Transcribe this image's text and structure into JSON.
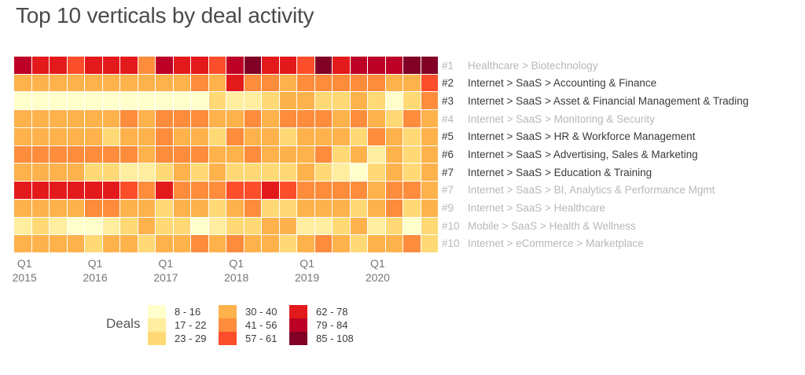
{
  "title": "Top 10 verticals by deal activity",
  "chart_data": {
    "type": "heatmap",
    "title": "Top 10 verticals by deal activity",
    "n_columns": 24,
    "column_meaning": "quarters from Q1 2015 through Q4 2020, one column per quarter",
    "x_axis": {
      "ticks": [
        {
          "quarter": "Q1",
          "year": "2015",
          "column": 1
        },
        {
          "quarter": "Q1",
          "year": "2016",
          "column": 5
        },
        {
          "quarter": "Q1",
          "year": "2017",
          "column": 9
        },
        {
          "quarter": "Q1",
          "year": "2018",
          "column": 13
        },
        {
          "quarter": "Q1",
          "year": "2019",
          "column": 17
        },
        {
          "quarter": "Q1",
          "year": "2020",
          "column": 21
        }
      ]
    },
    "legend": {
      "label": "Deals",
      "bins": [
        {
          "range": "8 - 16",
          "color": "#FFFFCC"
        },
        {
          "range": "17 - 22",
          "color": "#FFEDA0"
        },
        {
          "range": "23 - 29",
          "color": "#FED976"
        },
        {
          "range": "30 - 40",
          "color": "#FEB24C"
        },
        {
          "range": "41 - 56",
          "color": "#FD8D3C"
        },
        {
          "range": "57 - 61",
          "color": "#FC4E2A"
        },
        {
          "range": "62 - 78",
          "color": "#E31A1C"
        },
        {
          "range": "79 - 84",
          "color": "#BD0026"
        },
        {
          "range": "85 - 108",
          "color": "#800026"
        }
      ]
    },
    "cell_values_are": "index into legend.bins (0 = lightest 8-16 deals, 8 = darkest 85-108 deals)",
    "rows": [
      {
        "rank": "#1",
        "label": "Healthcare > Biotechnology",
        "muted": true,
        "bins": [
          7,
          6,
          6,
          5,
          6,
          6,
          6,
          4,
          7,
          6,
          6,
          5,
          7,
          8,
          6,
          6,
          5,
          8,
          6,
          7,
          7,
          7,
          8,
          8
        ]
      },
      {
        "rank": "#2",
        "label": "Internet > SaaS > Accounting & Finance",
        "muted": false,
        "bins": [
          3,
          3,
          3,
          3,
          3,
          3,
          3,
          3,
          3,
          3,
          4,
          3,
          6,
          4,
          4,
          3,
          4,
          4,
          4,
          4,
          4,
          3,
          3,
          5
        ]
      },
      {
        "rank": "#3",
        "label": "Internet > SaaS > Asset & Financial Management & Trading",
        "muted": false,
        "bins": [
          0,
          0,
          0,
          0,
          0,
          0,
          0,
          0,
          0,
          0,
          0,
          2,
          1,
          1,
          2,
          3,
          3,
          2,
          2,
          3,
          2,
          0,
          2,
          4
        ]
      },
      {
        "rank": "#4",
        "label": "Internet > SaaS > Monitoring & Security",
        "muted": true,
        "bins": [
          3,
          3,
          3,
          3,
          3,
          3,
          4,
          3,
          4,
          4,
          4,
          3,
          3,
          4,
          3,
          4,
          4,
          4,
          3,
          4,
          3,
          2,
          4,
          3
        ]
      },
      {
        "rank": "#5",
        "label": "Internet > SaaS > HR & Workforce Management",
        "muted": false,
        "bins": [
          3,
          3,
          3,
          3,
          3,
          2,
          3,
          3,
          4,
          3,
          3,
          2,
          4,
          3,
          3,
          2,
          3,
          3,
          3,
          2,
          4,
          3,
          2,
          3
        ]
      },
      {
        "rank": "#6",
        "label": "Internet > SaaS > Advertising, Sales & Marketing",
        "muted": false,
        "bins": [
          4,
          4,
          4,
          4,
          4,
          4,
          4,
          3,
          4,
          4,
          4,
          3,
          3,
          4,
          3,
          3,
          3,
          4,
          2,
          3,
          1,
          3,
          2,
          3
        ]
      },
      {
        "rank": "#7",
        "label": "Internet > SaaS > Education & Training",
        "muted": false,
        "bins": [
          3,
          3,
          3,
          3,
          2,
          2,
          1,
          1,
          2,
          3,
          2,
          3,
          2,
          2,
          2,
          2,
          3,
          2,
          1,
          0,
          2,
          3,
          2,
          3
        ]
      },
      {
        "rank": "#7",
        "label": "Internet > SaaS > BI, Analytics & Performance Mgmt",
        "muted": true,
        "bins": [
          6,
          6,
          6,
          6,
          6,
          6,
          5,
          4,
          6,
          4,
          4,
          4,
          5,
          5,
          6,
          5,
          4,
          4,
          4,
          4,
          3,
          4,
          4,
          3
        ]
      },
      {
        "rank": "#9",
        "label": "Internet > SaaS > Healthcare",
        "muted": true,
        "bins": [
          3,
          3,
          3,
          3,
          4,
          4,
          3,
          3,
          2,
          3,
          3,
          2,
          3,
          4,
          2,
          2,
          3,
          3,
          3,
          2,
          3,
          4,
          2,
          3
        ]
      },
      {
        "rank": "#10",
        "label": "Mobile > SaaS > Health & Wellness",
        "muted": true,
        "bins": [
          1,
          2,
          1,
          0,
          0,
          1,
          2,
          3,
          2,
          2,
          0,
          1,
          2,
          2,
          3,
          3,
          1,
          1,
          2,
          3,
          1,
          2,
          0,
          2
        ]
      },
      {
        "rank": "#10",
        "label": "Internet > eCommerce > Marketplace",
        "muted": true,
        "bins": [
          3,
          3,
          3,
          3,
          2,
          3,
          3,
          2,
          3,
          3,
          4,
          3,
          4,
          3,
          3,
          2,
          3,
          4,
          3,
          2,
          3,
          3,
          4,
          2
        ]
      }
    ]
  },
  "colors": {
    "title_text": "#4a4a4a",
    "row_label_dark": "#3a3a3a",
    "row_label_muted": "#b8b8b8",
    "axis_text": "#757575"
  }
}
